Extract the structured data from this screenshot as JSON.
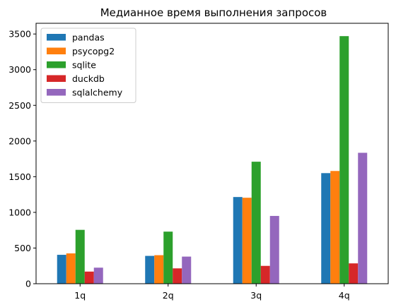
{
  "chart_data": {
    "type": "bar",
    "title": "Медианное время выполнения запросов",
    "xlabel": "",
    "ylabel": "",
    "categories": [
      "1q",
      "2q",
      "3q",
      "4q"
    ],
    "ylim": [
      0,
      3650
    ],
    "yticks": [
      0,
      500,
      1000,
      1500,
      2000,
      2500,
      3000,
      3500
    ],
    "legend_position": "top-left",
    "grid": false,
    "series": [
      {
        "name": "pandas",
        "color": "#1f77b4",
        "values": [
          405,
          390,
          1215,
          1550
        ]
      },
      {
        "name": "psycopg2",
        "color": "#ff7f0e",
        "values": [
          425,
          400,
          1205,
          1580
        ]
      },
      {
        "name": "sqlite",
        "color": "#2ca02c",
        "values": [
          755,
          730,
          1710,
          3470
        ]
      },
      {
        "name": "duckdb",
        "color": "#d62728",
        "values": [
          170,
          215,
          250,
          285
        ]
      },
      {
        "name": "sqlalchemy",
        "color": "#9467bd",
        "values": [
          225,
          380,
          950,
          1835
        ]
      }
    ]
  }
}
